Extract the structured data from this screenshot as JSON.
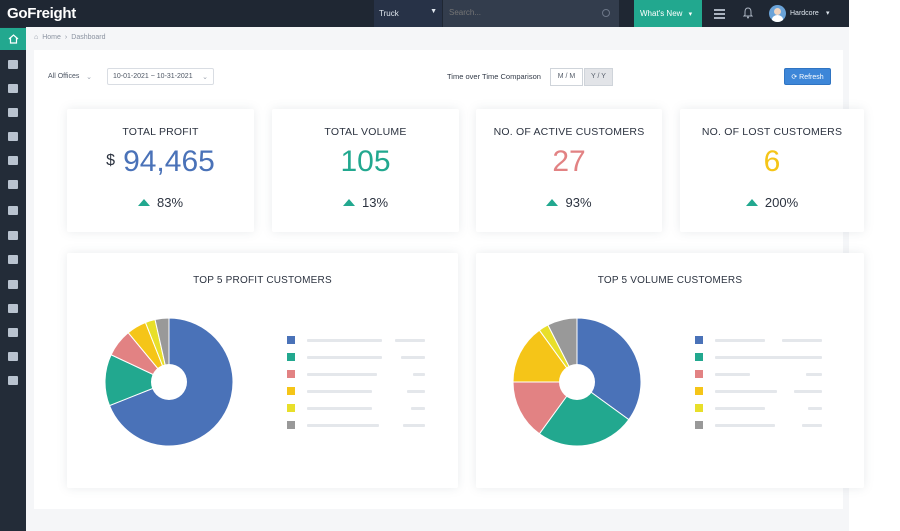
{
  "header": {
    "logo": "GoFreight",
    "mode_select": "Truck",
    "search_placeholder": "Search...",
    "whats_new": "What's New",
    "user_name": "Hardcore"
  },
  "breadcrumb": [
    "Home",
    "Dashboard"
  ],
  "filters": {
    "office": "All Offices",
    "date_range": "10-01-2021 ~ 10-31-2021",
    "comparison_label": "Time over Time Comparison",
    "mm": "M / M",
    "yy": "Y / Y",
    "refresh": "Refresh"
  },
  "kpis": [
    {
      "title": "TOTAL PROFIT",
      "currency": "$",
      "value": "94,465",
      "change": "83%",
      "color": "#4a72b8"
    },
    {
      "title": "TOTAL VOLUME",
      "currency": "",
      "value": "105",
      "change": "13%",
      "color": "#22a88f"
    },
    {
      "title": "NO. OF ACTIVE CUSTOMERS",
      "currency": "",
      "value": "27",
      "change": "93%",
      "color": "#e28283"
    },
    {
      "title": "NO. OF LOST CUSTOMERS",
      "currency": "",
      "value": "6",
      "change": "200%",
      "color": "#f5c518"
    }
  ],
  "chart_data": [
    {
      "type": "pie",
      "title": "TOP 5 PROFIT CUSTOMERS",
      "categories": [
        "",
        "",
        "",
        "",
        "",
        ""
      ],
      "values": [
        69,
        13,
        7,
        5,
        2.5,
        3.5
      ],
      "colors": [
        "#4a72b8",
        "#22a88f",
        "#e28283",
        "#f5c518",
        "#e8df2a",
        "#999999"
      ]
    },
    {
      "type": "pie",
      "title": "TOP 5 VOLUME CUSTOMERS",
      "categories": [
        "",
        "",
        "",
        "",
        "",
        ""
      ],
      "values": [
        35,
        25,
        15,
        15,
        2.5,
        7.5
      ],
      "colors": [
        "#4a72b8",
        "#22a88f",
        "#e28283",
        "#f5c518",
        "#e8df2a",
        "#999999"
      ]
    }
  ]
}
